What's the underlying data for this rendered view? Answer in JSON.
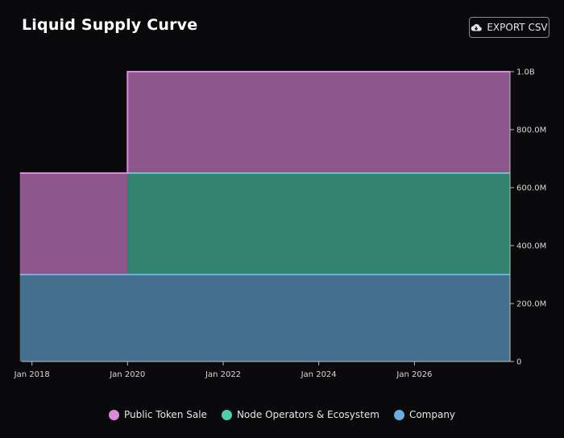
{
  "header": {
    "title": "Liquid Supply Curve",
    "export_label": "EXPORT CSV",
    "export_icon": "cloud-download-icon"
  },
  "colors": {
    "background": "#0a0a0c",
    "public_token_sale": "#dd88dd",
    "node_operators": "#4ecfb0",
    "company": "#6aaee0"
  },
  "chart_data": {
    "type": "area",
    "stacked": true,
    "step": true,
    "x": [
      "2017-10",
      "2019-12",
      "2020-01",
      "2028-01"
    ],
    "x_ticks": [
      "Jan 2018",
      "Jan 2020",
      "Jan 2022",
      "Jan 2024",
      "Jan 2026"
    ],
    "y_ticks": [
      "0",
      "200.0M",
      "400.0M",
      "600.0M",
      "800.0M",
      "1.0B"
    ],
    "ylim": [
      0,
      1000000000
    ],
    "y_axis_position": "right",
    "grid": false,
    "series": [
      {
        "name": "Company",
        "color": "#6aaee0",
        "values": [
          300000000,
          300000000,
          300000000,
          300000000
        ]
      },
      {
        "name": "Node Operators & Ecosystem",
        "color": "#4ecfb0",
        "values": [
          0,
          0,
          350000000,
          350000000
        ]
      },
      {
        "name": "Public Token Sale",
        "color": "#dd88dd",
        "values": [
          350000000,
          350000000,
          350000000,
          350000000
        ]
      }
    ],
    "legend": [
      "Public Token Sale",
      "Node Operators & Ecosystem",
      "Company"
    ],
    "legend_position": "bottom"
  }
}
